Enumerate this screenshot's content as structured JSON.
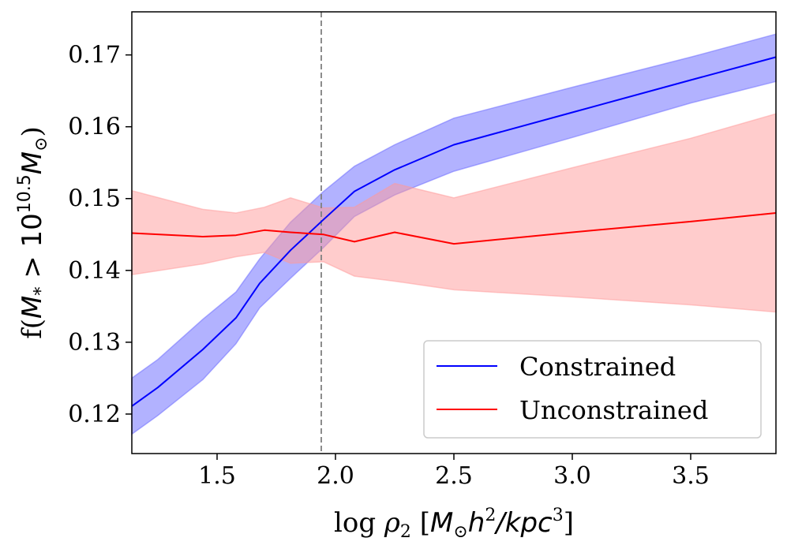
{
  "chart_data": {
    "type": "line",
    "xlabel_parts": {
      "prefix": "log ",
      "rho": "ρ",
      "rho_sub": "2",
      "open": " [",
      "M": "M",
      "sun": "⊙",
      "h": "h",
      "h_sup": "2",
      "slash_kpc": "/kpc",
      "kpc_sup": "3",
      "close": "]"
    },
    "ylabel_parts": {
      "f": "f(",
      "M": "M",
      "star": "*",
      "gt": " > 10",
      "exp": "10.5",
      "M2": "M",
      "sun": "⊙",
      "close": ")"
    },
    "xlim": [
      1.14,
      3.86
    ],
    "ylim": [
      0.1145,
      0.176
    ],
    "xticks": [
      1.5,
      2.0,
      2.5,
      3.0,
      3.5
    ],
    "xtick_labels": [
      "1.5",
      "2.0",
      "2.5",
      "3.0",
      "3.5"
    ],
    "yticks": [
      0.12,
      0.13,
      0.14,
      0.15,
      0.16,
      0.17
    ],
    "ytick_labels": [
      "0.12",
      "0.13",
      "0.14",
      "0.15",
      "0.16",
      "0.17"
    ],
    "vline_x": 1.94,
    "series": [
      {
        "name": "Constrained",
        "color": "#0000ff",
        "band_color": "#6666ff",
        "x": [
          1.14,
          1.25,
          1.44,
          1.58,
          1.68,
          1.81,
          1.95,
          2.08,
          2.25,
          2.5,
          3.0,
          3.5,
          3.86
        ],
        "y": [
          0.1211,
          0.1237,
          0.129,
          0.1334,
          0.1382,
          0.1428,
          0.1471,
          0.151,
          0.154,
          0.1575,
          0.162,
          0.1665,
          0.1697
        ],
        "lower": [
          0.1172,
          0.1198,
          0.1248,
          0.1298,
          0.1348,
          0.1389,
          0.1432,
          0.1475,
          0.1505,
          0.1538,
          0.1585,
          0.1633,
          0.1663
        ],
        "upper": [
          0.125,
          0.1276,
          0.1332,
          0.137,
          0.1416,
          0.1467,
          0.151,
          0.1545,
          0.1575,
          0.1612,
          0.1655,
          0.1697,
          0.1729
        ]
      },
      {
        "name": "Unconstrained",
        "color": "#ff0000",
        "band_color": "#ff9999",
        "x": [
          1.14,
          1.44,
          1.58,
          1.7,
          1.81,
          1.95,
          2.08,
          2.25,
          2.5,
          3.0,
          3.5,
          3.86
        ],
        "y": [
          0.1452,
          0.1447,
          0.1449,
          0.1456,
          0.1453,
          0.145,
          0.144,
          0.1453,
          0.1437,
          0.1453,
          0.1468,
          0.148
        ],
        "lower": [
          0.1394,
          0.1409,
          0.1419,
          0.1425,
          0.141,
          0.1412,
          0.1392,
          0.1385,
          0.1373,
          0.1363,
          0.1352,
          0.1342
        ],
        "upper": [
          0.1511,
          0.1485,
          0.148,
          0.1488,
          0.1501,
          0.1487,
          0.1488,
          0.1521,
          0.1501,
          0.1543,
          0.1584,
          0.1618
        ]
      }
    ],
    "legend": {
      "position": "lower-right",
      "entries": [
        "Constrained",
        "Unconstrained"
      ]
    }
  }
}
